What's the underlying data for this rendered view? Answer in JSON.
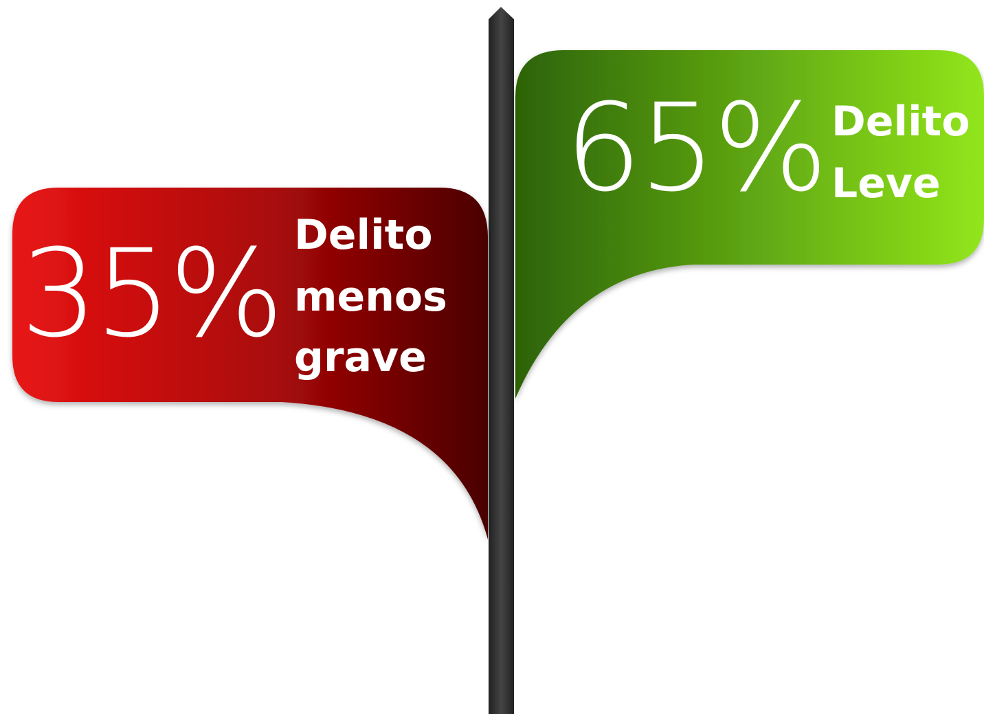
{
  "signs": [
    {
      "value": "35%",
      "label_lines": [
        "Delito",
        "menos",
        "grave"
      ]
    },
    {
      "value": "65%",
      "label_lines": [
        "Delito",
        "Leve"
      ]
    }
  ]
}
